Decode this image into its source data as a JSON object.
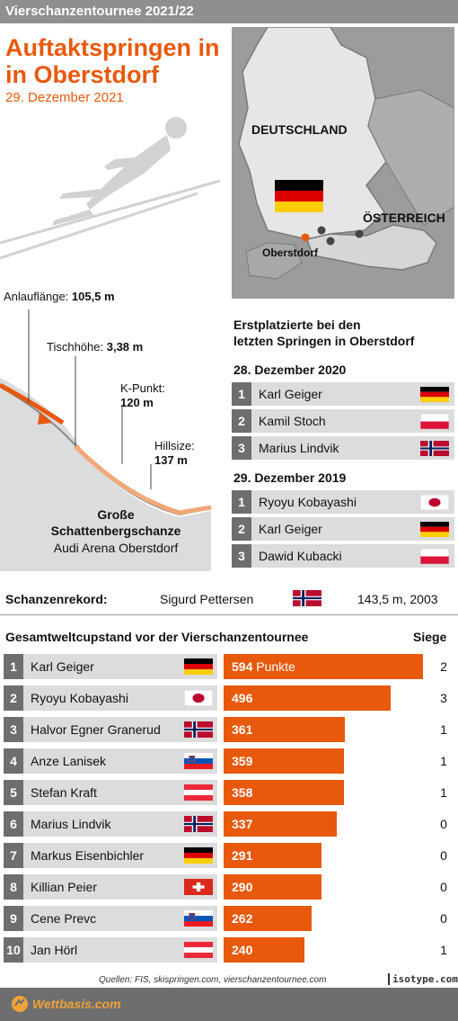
{
  "header": {
    "title": "Vierschanzentournee 2021/22"
  },
  "headline": {
    "line1": "Auftaktspringen in",
    "line2": "in Oberstdorf",
    "date": "29. Dezember 2021"
  },
  "map": {
    "country_de": "DEUTSCHLAND",
    "country_at": "ÖSTERREICH",
    "city": "Oberstdorf"
  },
  "hill": {
    "anlauf_label": "Anlauflänge:",
    "anlauf_value": "105,5 m",
    "tisch_label": "Tischhöhe:",
    "tisch_value": "3,38 m",
    "kpunkt_label": "K-Punkt:",
    "kpunkt_value": "120 m",
    "hillsize_label": "Hillsize:",
    "hillsize_value": "137 m",
    "name_line1": "Große",
    "name_line2": "Schattenbergschanze",
    "arena": "Audi Arena Oberstdorf"
  },
  "winners": {
    "title_line1": "Erstplatzierte bei den",
    "title_line2": "letzten Springen in Oberstdorf",
    "events": [
      {
        "date": "28. Dezember 2020",
        "podium": [
          {
            "rank": "1",
            "name": "Karl Geiger",
            "flag": "de"
          },
          {
            "rank": "2",
            "name": "Kamil Stoch",
            "flag": "pl"
          },
          {
            "rank": "3",
            "name": "Marius Lindvik",
            "flag": "no"
          }
        ]
      },
      {
        "date": "29. Dezember 2019",
        "podium": [
          {
            "rank": "1",
            "name": "Ryoyu Kobayashi",
            "flag": "jp"
          },
          {
            "rank": "2",
            "name": "Karl Geiger",
            "flag": "de"
          },
          {
            "rank": "3",
            "name": "Dawid Kubacki",
            "flag": "pl"
          }
        ]
      }
    ]
  },
  "record": {
    "label": "Schanzenrekord:",
    "holder": "Sigurd Pettersen",
    "flag": "no",
    "value": "143,5 m, 2003"
  },
  "standings": {
    "title": "Gesamtweltcupstand vor der Vierschanzentournee",
    "siege_header": "Siege",
    "points_unit": "Punkte"
  },
  "chart_data": {
    "type": "bar",
    "orientation": "horizontal",
    "categories": [
      "Karl Geiger",
      "Ryoyu Kobayashi",
      "Halvor Egner Granerud",
      "Anze Lanisek",
      "Stefan Kraft",
      "Marius Lindvik",
      "Markus Eisenbichler",
      "Killian Peier",
      "Cene Prevc",
      "Jan Hörl"
    ],
    "ranks": [
      "1",
      "2",
      "3",
      "4",
      "5",
      "6",
      "7",
      "8",
      "9",
      "10"
    ],
    "flags": [
      "de",
      "jp",
      "no",
      "si",
      "at",
      "no",
      "de",
      "ch",
      "si",
      "at"
    ],
    "series": [
      {
        "name": "Punkte",
        "values": [
          594,
          496,
          361,
          359,
          358,
          337,
          291,
          290,
          262,
          240
        ]
      },
      {
        "name": "Siege",
        "values": [
          2,
          3,
          1,
          1,
          1,
          0,
          0,
          0,
          0,
          1
        ]
      }
    ],
    "xlim": [
      0,
      620
    ]
  },
  "footer": {
    "sources": "Quellen: FIS, skispringen.com, vierschanzentournee.com",
    "isotype": "isotype.com",
    "logo": "Wettbasis.com"
  },
  "colors": {
    "accent": "#e8590c",
    "gray_bar": "#8f8f8f",
    "row_bg": "#dcdcdc",
    "num_bg": "#6e6e6e"
  }
}
